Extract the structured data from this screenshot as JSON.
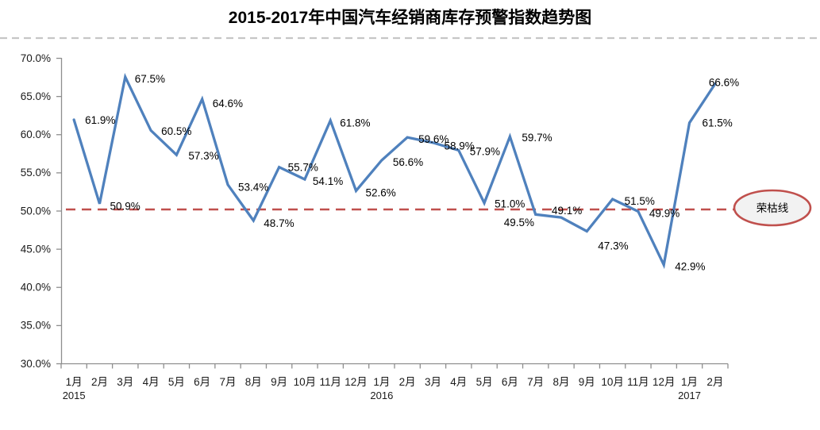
{
  "chart_data": {
    "type": "line",
    "title": "2015-2017年中国汽车经销商库存预警指数趋势图",
    "categories": [
      "1月",
      "2月",
      "3月",
      "4月",
      "5月",
      "6月",
      "7月",
      "8月",
      "9月",
      "10月",
      "11月",
      "12月",
      "1月",
      "2月",
      "3月",
      "4月",
      "5月",
      "6月",
      "7月",
      "8月",
      "9月",
      "10月",
      "11月",
      "12月",
      "1月",
      "2月"
    ],
    "year_groups": [
      {
        "label": "2015",
        "start_index": 0
      },
      {
        "label": "2016",
        "start_index": 12
      },
      {
        "label": "2017",
        "start_index": 24
      }
    ],
    "values": [
      61.9,
      50.9,
      67.5,
      60.5,
      57.3,
      64.6,
      53.4,
      48.7,
      55.7,
      54.1,
      61.8,
      52.6,
      56.6,
      59.6,
      58.9,
      57.9,
      51.0,
      59.7,
      49.5,
      49.1,
      47.3,
      51.5,
      49.9,
      42.9,
      61.5,
      66.6
    ],
    "data_label_suffix": "%",
    "ylim": [
      30,
      70
    ],
    "ytick_step": 5,
    "ytick_suffix": "%",
    "grid": false,
    "legend": false,
    "xlabel": "",
    "ylabel": "",
    "reference_line": {
      "value": 50,
      "label": "荣枯线",
      "style": "dashed"
    }
  },
  "colors": {
    "line": "#4F81BD",
    "reference": "#C0504D",
    "axis": "#8E8E8E",
    "separator": "#C6C6C6",
    "tick_text": "#1a1a1a",
    "data_label_text": "#000000",
    "ellipse_fill": "#F2F2F2"
  }
}
